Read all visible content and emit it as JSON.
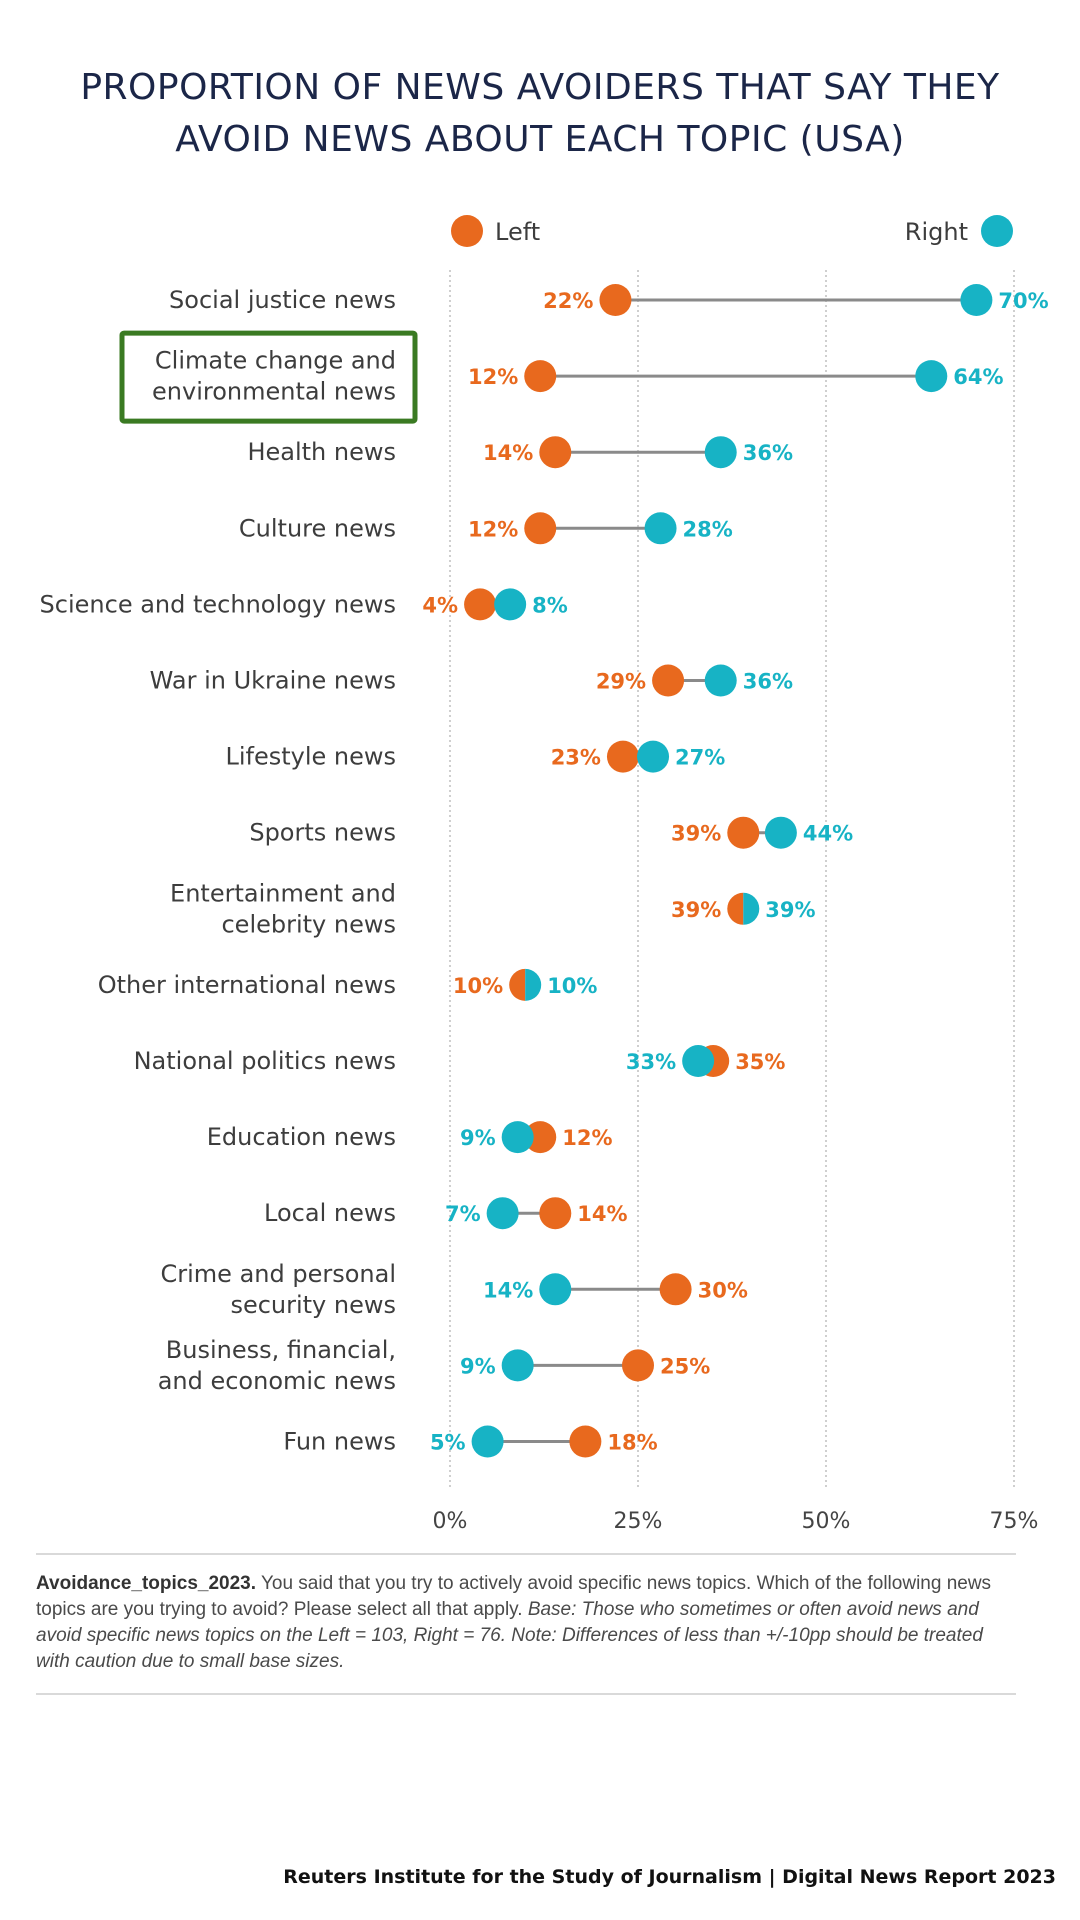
{
  "title": {
    "line1": "PROPORTION OF NEWS AVOIDERS THAT SAY THEY",
    "line2": "AVOID NEWS ABOUT EACH TOPIC  (USA)"
  },
  "chart_data": {
    "type": "dumbbell",
    "title": "PROPORTION OF NEWS AVOIDERS THAT SAY THEY AVOID NEWS ABOUT EACH TOPIC  (USA)",
    "categories": [
      "Social justice news",
      "Climate change and environmental news",
      "Health news",
      "Culture news",
      "Science and technology news",
      "War in Ukraine news",
      "Lifestyle news",
      "Sports news",
      "Entertainment and celebrity news",
      "Other international news",
      "National politics news",
      "Education news",
      "Local news",
      "Crime and personal security news",
      "Business, financial, and economic news",
      "Fun news"
    ],
    "category_lines": [
      [
        "Social justice news"
      ],
      [
        "Climate change and",
        "environmental news"
      ],
      [
        "Health news"
      ],
      [
        "Culture news"
      ],
      [
        "Science and technology news"
      ],
      [
        "War in Ukraine news"
      ],
      [
        "Lifestyle news"
      ],
      [
        "Sports news"
      ],
      [
        "Entertainment and",
        "celebrity news"
      ],
      [
        "Other international news"
      ],
      [
        "National politics news"
      ],
      [
        "Education news"
      ],
      [
        "Local news"
      ],
      [
        "Crime and personal",
        "security news"
      ],
      [
        "Business, financial,",
        "and economic news"
      ],
      [
        "Fun news"
      ]
    ],
    "series": [
      {
        "name": "Left",
        "color": "#e8691e",
        "values": [
          22,
          12,
          14,
          12,
          4,
          29,
          23,
          39,
          39,
          10,
          35,
          12,
          14,
          30,
          25,
          18
        ]
      },
      {
        "name": "Right",
        "color": "#17b3c5",
        "values": [
          70,
          64,
          36,
          28,
          8,
          36,
          27,
          44,
          39,
          10,
          33,
          9,
          7,
          14,
          9,
          5
        ]
      }
    ],
    "xlim": [
      0,
      75
    ],
    "xticks": [
      0,
      25,
      50,
      75
    ],
    "xtick_labels": [
      "0%",
      "25%",
      "50%",
      "75%"
    ],
    "grid": "vertical dotted",
    "legend": "top",
    "highlighted_category": "Climate change and environmental news",
    "highlight_color": "#3a7a22"
  },
  "note": {
    "bold": "Avoidance_topics_2023.",
    "text": " You said that you try to actively avoid specific news topics. Which of the following news topics are you trying to avoid? Please select all that apply. ",
    "italic": "Base: Those who sometimes or often avoid news and avoid specific news topics on the Left = 103, Right = 76. Note: Differences of less than +/-10pp should be treated with caution due to small base sizes."
  },
  "footer": "Reuters Institute for the Study of Journalism | Digital News Report 2023"
}
